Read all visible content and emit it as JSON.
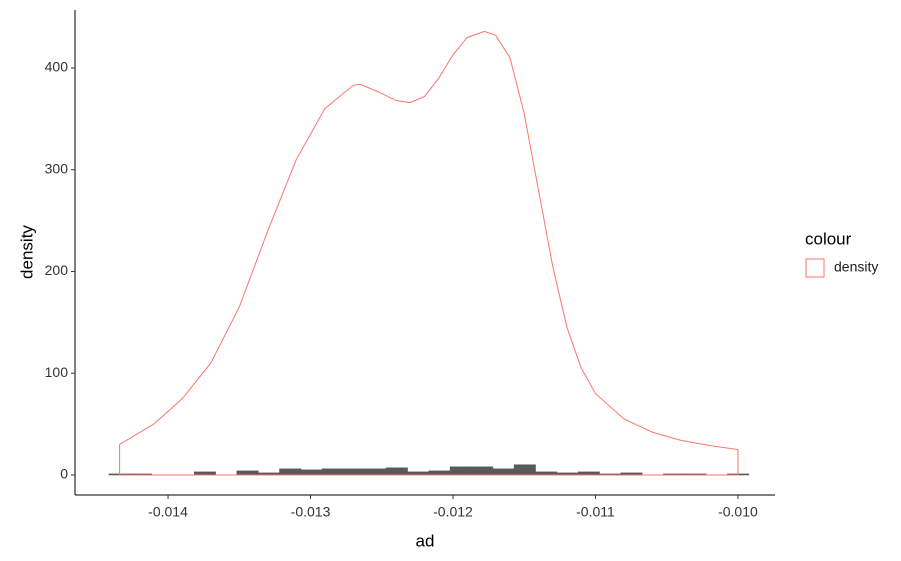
{
  "chart_data": {
    "type": "histogram",
    "x_label": "ad",
    "y_label": "density",
    "legend_title": "colour",
    "bins": [
      -0.014415,
      -0.0142653,
      -0.0141156,
      -0.0139659,
      -0.0138162,
      -0.0136665,
      -0.0135168,
      -0.0133671,
      -0.0132174,
      -0.0130677,
      -0.012918,
      -0.0127683,
      -0.0126186,
      -0.0124689,
      -0.0123192,
      -0.0121695,
      -0.0120198,
      -0.0118701,
      -0.0117204,
      -0.0115707,
      -0.011421,
      -0.0112713,
      -0.0111216,
      -0.0109719,
      -0.0108222,
      -0.0106725,
      -0.0105228,
      -0.0103731,
      -0.0102234,
      -0.0100737,
      -0.009924
    ],
    "counts": [
      1,
      1,
      0,
      0,
      3,
      0,
      4,
      2,
      6,
      5,
      6,
      6,
      6,
      7,
      3,
      4,
      8,
      8,
      6,
      10,
      3,
      2,
      3,
      1,
      2,
      0,
      1,
      1,
      0,
      1
    ],
    "color": "#595959",
    "series": [
      {
        "name": "density",
        "color": "#F8766D",
        "x": [
          -0.01434,
          -0.01434,
          -0.0141,
          -0.0139,
          -0.0137,
          -0.0135,
          -0.0133,
          -0.0131,
          -0.0129,
          -0.0127,
          -0.01265,
          -0.0125,
          -0.0124,
          -0.0123,
          -0.0122,
          -0.0121,
          -0.012,
          -0.0119,
          -0.01178,
          -0.0117,
          -0.0116,
          -0.0115,
          -0.0114,
          -0.0113,
          -0.0112,
          -0.0111,
          -0.011,
          -0.0108,
          -0.0106,
          -0.0104,
          -0.0102,
          -0.01,
          -0.01
        ],
        "values": [
          0,
          30,
          50,
          75,
          110,
          165,
          240,
          310,
          360,
          383,
          384,
          375,
          368,
          366,
          372,
          390,
          413,
          430,
          436,
          432,
          410,
          355,
          280,
          205,
          145,
          105,
          80,
          55,
          42,
          34,
          29,
          25,
          0
        ]
      }
    ],
    "xlim": [
      -0.014653,
      -0.00974
    ],
    "xticks": [
      -0.014,
      -0.013,
      -0.012,
      -0.011,
      {
        "value": -0.01,
        "label": "-0.010"
      }
    ],
    "ylim": [
      -19.7,
      457
    ],
    "yticks": [
      0,
      100,
      200,
      300,
      400
    ]
  }
}
